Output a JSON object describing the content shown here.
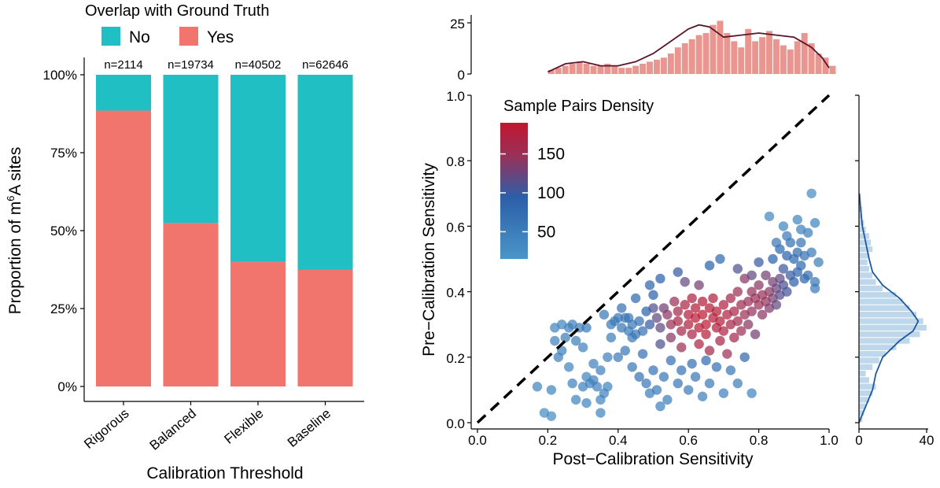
{
  "chart_data": [
    {
      "type": "bar",
      "stacked": true,
      "legend": {
        "title": "Overlap with Ground Truth",
        "position": "top",
        "entries": [
          {
            "name": "No",
            "color": "#1FBFC3"
          },
          {
            "name": "Yes",
            "color": "#F1756D"
          }
        ]
      },
      "xlabel": "Calibration Threshold",
      "ylabel_prefix": "Proportion of m",
      "ylabel_sup": "6",
      "ylabel_suffix": "A sites",
      "ylim": [
        0,
        1
      ],
      "yticks": [
        "0%",
        "25%",
        "50%",
        "75%",
        "100%"
      ],
      "categories": [
        "Rigorous",
        "Balanced",
        "Flexible",
        "Baseline"
      ],
      "counts": [
        "n=2114",
        "n=19734",
        "n=40502",
        "n=62646"
      ],
      "series": [
        {
          "name": "Yes",
          "values": [
            0.885,
            0.525,
            0.4,
            0.375
          ]
        },
        {
          "name": "No",
          "values": [
            0.115,
            0.475,
            0.6,
            0.625
          ]
        }
      ]
    },
    {
      "type": "scatter",
      "xlabel": "Post−Calibration Sensitivity",
      "ylabel": "Pre−Calibration Sensitivity",
      "xlim": [
        0,
        1
      ],
      "ylim": [
        0,
        1
      ],
      "xticks": [
        "0.0",
        "0.2",
        "0.4",
        "0.6",
        "0.8",
        "1.0"
      ],
      "yticks": [
        "0.0",
        "0.2",
        "0.4",
        "0.6",
        "0.8",
        "1.0"
      ],
      "reference_line": {
        "type": "identity",
        "style": "dashed"
      },
      "colorbar": {
        "title": "Sample Pairs Density",
        "ticks": [
          "50",
          "100",
          "150"
        ],
        "low_color": "#4A96C9",
        "mid_color": "#2C5FA8",
        "high_color": "#C0172E",
        "range": [
          15,
          190
        ]
      },
      "points": [
        [
          0.17,
          0.11,
          40
        ],
        [
          0.19,
          0.03,
          30
        ],
        [
          0.21,
          0.02,
          30
        ],
        [
          0.21,
          0.1,
          40
        ],
        [
          0.22,
          0.29,
          40
        ],
        [
          0.22,
          0.25,
          45
        ],
        [
          0.23,
          0.2,
          45
        ],
        [
          0.24,
          0.22,
          45
        ],
        [
          0.24,
          0.3,
          40
        ],
        [
          0.25,
          0.26,
          50
        ],
        [
          0.26,
          0.29,
          45
        ],
        [
          0.27,
          0.3,
          45
        ],
        [
          0.27,
          0.12,
          45
        ],
        [
          0.28,
          0.25,
          50
        ],
        [
          0.28,
          0.07,
          40
        ],
        [
          0.29,
          0.29,
          50
        ],
        [
          0.3,
          0.23,
          45
        ],
        [
          0.3,
          0.11,
          45
        ],
        [
          0.31,
          0.14,
          40
        ],
        [
          0.31,
          0.06,
          40
        ],
        [
          0.32,
          0.12,
          45
        ],
        [
          0.33,
          0.13,
          45
        ],
        [
          0.34,
          0.11,
          45
        ],
        [
          0.35,
          0.07,
          40
        ],
        [
          0.35,
          0.03,
          40
        ],
        [
          0.36,
          0.09,
          45
        ],
        [
          0.37,
          0.11,
          40
        ],
        [
          0.37,
          0.2,
          45
        ],
        [
          0.38,
          0.26,
          50
        ],
        [
          0.38,
          0.3,
          55
        ],
        [
          0.39,
          0.31,
          55
        ],
        [
          0.4,
          0.32,
          60
        ],
        [
          0.41,
          0.29,
          60
        ],
        [
          0.42,
          0.32,
          60
        ],
        [
          0.43,
          0.28,
          55
        ],
        [
          0.43,
          0.32,
          60
        ],
        [
          0.44,
          0.26,
          55
        ],
        [
          0.44,
          0.3,
          60
        ],
        [
          0.45,
          0.27,
          60
        ],
        [
          0.46,
          0.31,
          70
        ],
        [
          0.47,
          0.28,
          70
        ],
        [
          0.48,
          0.34,
          90
        ],
        [
          0.49,
          0.3,
          100
        ],
        [
          0.5,
          0.39,
          90
        ],
        [
          0.5,
          0.35,
          110
        ],
        [
          0.51,
          0.32,
          120
        ],
        [
          0.52,
          0.29,
          120
        ],
        [
          0.52,
          0.24,
          110
        ],
        [
          0.53,
          0.35,
          130
        ],
        [
          0.54,
          0.33,
          140
        ],
        [
          0.55,
          0.3,
          150
        ],
        [
          0.55,
          0.26,
          140
        ],
        [
          0.56,
          0.37,
          150
        ],
        [
          0.57,
          0.34,
          160
        ],
        [
          0.57,
          0.31,
          165
        ],
        [
          0.58,
          0.28,
          160
        ],
        [
          0.58,
          0.23,
          150
        ],
        [
          0.59,
          0.36,
          170
        ],
        [
          0.6,
          0.33,
          175
        ],
        [
          0.6,
          0.3,
          175
        ],
        [
          0.61,
          0.38,
          170
        ],
        [
          0.61,
          0.27,
          165
        ],
        [
          0.62,
          0.35,
          180
        ],
        [
          0.62,
          0.32,
          185
        ],
        [
          0.63,
          0.29,
          180
        ],
        [
          0.63,
          0.24,
          170
        ],
        [
          0.64,
          0.37,
          180
        ],
        [
          0.64,
          0.33,
          185
        ],
        [
          0.65,
          0.3,
          185
        ],
        [
          0.65,
          0.27,
          180
        ],
        [
          0.66,
          0.35,
          180
        ],
        [
          0.66,
          0.22,
          160
        ],
        [
          0.67,
          0.32,
          180
        ],
        [
          0.67,
          0.38,
          175
        ],
        [
          0.68,
          0.29,
          175
        ],
        [
          0.68,
          0.34,
          180
        ],
        [
          0.69,
          0.31,
          175
        ],
        [
          0.69,
          0.25,
          165
        ],
        [
          0.7,
          0.36,
          170
        ],
        [
          0.7,
          0.28,
          170
        ],
        [
          0.71,
          0.33,
          170
        ],
        [
          0.71,
          0.21,
          150
        ],
        [
          0.72,
          0.3,
          165
        ],
        [
          0.72,
          0.38,
          160
        ],
        [
          0.73,
          0.34,
          165
        ],
        [
          0.73,
          0.26,
          160
        ],
        [
          0.74,
          0.31,
          160
        ],
        [
          0.74,
          0.4,
          150
        ],
        [
          0.75,
          0.36,
          155
        ],
        [
          0.75,
          0.28,
          150
        ],
        [
          0.76,
          0.33,
          150
        ],
        [
          0.76,
          0.44,
          140
        ],
        [
          0.77,
          0.37,
          150
        ],
        [
          0.77,
          0.3,
          140
        ],
        [
          0.78,
          0.4,
          145
        ],
        [
          0.78,
          0.34,
          145
        ],
        [
          0.79,
          0.38,
          150
        ],
        [
          0.79,
          0.27,
          130
        ],
        [
          0.8,
          0.36,
          150
        ],
        [
          0.8,
          0.42,
          140
        ],
        [
          0.81,
          0.39,
          150
        ],
        [
          0.81,
          0.33,
          140
        ],
        [
          0.82,
          0.37,
          145
        ],
        [
          0.82,
          0.45,
          130
        ],
        [
          0.83,
          0.4,
          140
        ],
        [
          0.83,
          0.35,
          135
        ],
        [
          0.84,
          0.38,
          135
        ],
        [
          0.84,
          0.43,
          130
        ],
        [
          0.85,
          0.41,
          125
        ],
        [
          0.85,
          0.36,
          120
        ],
        [
          0.86,
          0.44,
          120
        ],
        [
          0.86,
          0.39,
          115
        ],
        [
          0.87,
          0.42,
          110
        ],
        [
          0.87,
          0.47,
          100
        ],
        [
          0.88,
          0.4,
          105
        ],
        [
          0.88,
          0.51,
          90
        ],
        [
          0.89,
          0.45,
          100
        ],
        [
          0.89,
          0.55,
          70
        ],
        [
          0.9,
          0.43,
          95
        ],
        [
          0.9,
          0.5,
          80
        ],
        [
          0.91,
          0.52,
          75
        ],
        [
          0.91,
          0.46,
          85
        ],
        [
          0.92,
          0.55,
          65
        ],
        [
          0.92,
          0.48,
          80
        ],
        [
          0.93,
          0.51,
          70
        ],
        [
          0.93,
          0.44,
          85
        ],
        [
          0.94,
          0.58,
          50
        ],
        [
          0.94,
          0.45,
          70
        ],
        [
          0.95,
          0.52,
          55
        ],
        [
          0.95,
          0.7,
          30
        ],
        [
          0.96,
          0.61,
          40
        ],
        [
          0.96,
          0.43,
          60
        ],
        [
          0.44,
          0.17,
          60
        ],
        [
          0.46,
          0.14,
          65
        ],
        [
          0.48,
          0.12,
          60
        ],
        [
          0.5,
          0.16,
          65
        ],
        [
          0.51,
          0.1,
          55
        ],
        [
          0.53,
          0.14,
          60
        ],
        [
          0.54,
          0.07,
          50
        ],
        [
          0.55,
          0.19,
          70
        ],
        [
          0.57,
          0.12,
          60
        ],
        [
          0.58,
          0.16,
          65
        ],
        [
          0.6,
          0.1,
          55
        ],
        [
          0.61,
          0.18,
          70
        ],
        [
          0.62,
          0.14,
          60
        ],
        [
          0.64,
          0.08,
          50
        ],
        [
          0.65,
          0.19,
          75
        ],
        [
          0.66,
          0.12,
          55
        ],
        [
          0.68,
          0.17,
          70
        ],
        [
          0.7,
          0.09,
          45
        ],
        [
          0.72,
          0.16,
          60
        ],
        [
          0.74,
          0.12,
          50
        ],
        [
          0.76,
          0.2,
          80
        ],
        [
          0.78,
          0.09,
          40
        ],
        [
          0.49,
          0.09,
          50
        ],
        [
          0.52,
          0.05,
          45
        ],
        [
          0.4,
          0.2,
          55
        ],
        [
          0.42,
          0.22,
          60
        ],
        [
          0.47,
          0.21,
          70
        ],
        [
          0.35,
          0.16,
          45
        ],
        [
          0.33,
          0.18,
          45
        ],
        [
          0.26,
          0.17,
          40
        ],
        [
          0.57,
          0.46,
          100
        ],
        [
          0.59,
          0.43,
          120
        ],
        [
          0.63,
          0.42,
          130
        ],
        [
          0.66,
          0.48,
          90
        ],
        [
          0.69,
          0.5,
          80
        ],
        [
          0.74,
          0.47,
          110
        ],
        [
          0.78,
          0.45,
          120
        ],
        [
          0.8,
          0.49,
          100
        ],
        [
          0.84,
          0.5,
          90
        ],
        [
          0.86,
          0.53,
          80
        ],
        [
          0.88,
          0.57,
          55
        ],
        [
          0.92,
          0.59,
          45
        ],
        [
          0.97,
          0.49,
          50
        ],
        [
          0.96,
          0.41,
          55
        ],
        [
          0.85,
          0.55,
          60
        ],
        [
          0.87,
          0.6,
          40
        ],
        [
          0.91,
          0.62,
          40
        ],
        [
          0.83,
          0.63,
          35
        ],
        [
          0.52,
          0.44,
          90
        ],
        [
          0.49,
          0.42,
          85
        ],
        [
          0.45,
          0.38,
          80
        ],
        [
          0.41,
          0.35,
          70
        ],
        [
          0.36,
          0.33,
          60
        ],
        [
          0.31,
          0.29,
          55
        ]
      ],
      "top_histogram": {
        "ymax": 25,
        "yticks": [
          "0",
          "25"
        ],
        "bin_start": 0.2,
        "bin_width": 0.02,
        "counts": [
          2,
          3,
          4,
          5,
          6,
          5,
          4,
          4,
          5,
          4,
          3,
          3,
          4,
          5,
          6,
          7,
          8,
          10,
          13,
          15,
          17,
          19,
          20,
          24,
          26,
          20,
          16,
          13,
          22,
          16,
          18,
          21,
          17,
          14,
          12,
          16,
          20,
          15,
          10,
          8,
          4
        ],
        "density_curve": [
          [
            0.2,
            1
          ],
          [
            0.25,
            5
          ],
          [
            0.3,
            6
          ],
          [
            0.35,
            4
          ],
          [
            0.4,
            4
          ],
          [
            0.45,
            6
          ],
          [
            0.5,
            10
          ],
          [
            0.55,
            16
          ],
          [
            0.6,
            22
          ],
          [
            0.63,
            24
          ],
          [
            0.66,
            23
          ],
          [
            0.7,
            18
          ],
          [
            0.75,
            19
          ],
          [
            0.8,
            20
          ],
          [
            0.85,
            19
          ],
          [
            0.9,
            18
          ],
          [
            0.95,
            13
          ],
          [
            0.98,
            8
          ],
          [
            1.0,
            3
          ]
        ],
        "bar_color": "#E5847E",
        "curve_color": "#5B1429"
      },
      "right_histogram": {
        "xmax": 40,
        "xticks": [
          "0",
          "40"
        ],
        "bin_start": 0.0,
        "bin_width": 0.02,
        "counts": [
          2,
          3,
          4,
          6,
          8,
          10,
          6,
          4,
          8,
          12,
          16,
          22,
          30,
          36,
          40,
          38,
          34,
          30,
          26,
          22,
          14,
          10,
          8,
          6,
          5,
          6,
          8,
          7,
          6,
          4,
          3,
          2,
          2,
          1
        ],
        "density_curve": [
          [
            0.0,
            0
          ],
          [
            0.05,
            4
          ],
          [
            0.1,
            8
          ],
          [
            0.15,
            10
          ],
          [
            0.2,
            14
          ],
          [
            0.25,
            24
          ],
          [
            0.28,
            32
          ],
          [
            0.31,
            35
          ],
          [
            0.34,
            31
          ],
          [
            0.38,
            24
          ],
          [
            0.42,
            14
          ],
          [
            0.46,
            8
          ],
          [
            0.5,
            6
          ],
          [
            0.55,
            4
          ],
          [
            0.6,
            2
          ],
          [
            0.65,
            1
          ],
          [
            0.7,
            0.3
          ]
        ],
        "bar_color": "#B8D3E8",
        "curve_color": "#1D58A0"
      }
    }
  ]
}
